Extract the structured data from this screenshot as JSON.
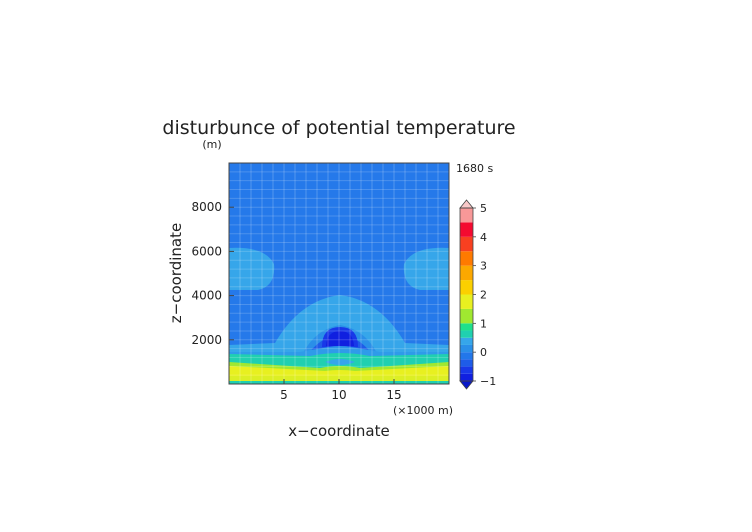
{
  "chart_data": {
    "type": "heatmap",
    "title": "disturbunce of potential temperature",
    "xlabel": "x−coordinate",
    "ylabel": "z−coordinate",
    "x_unit": "(×1000 m)",
    "y_unit": "(m)",
    "time_label": "1680 s",
    "xlim": [
      0,
      20
    ],
    "ylim": [
      0,
      10000
    ],
    "x_ticks": [
      "5",
      "10",
      "15"
    ],
    "y_ticks": [
      "2000",
      "4000",
      "6000",
      "8000"
    ],
    "grid": true,
    "colorbar": {
      "ticks": [
        "−1",
        "0",
        "1",
        "2",
        "3",
        "4",
        "5"
      ],
      "min": -1,
      "max": 5,
      "levels": [
        {
          "from": -1.0,
          "to": -0.75,
          "color": "#1020e0"
        },
        {
          "from": -0.75,
          "to": -0.5,
          "color": "#1838e8"
        },
        {
          "from": -0.5,
          "to": -0.25,
          "color": "#1e5ce8"
        },
        {
          "from": -0.25,
          "to": 0.0,
          "color": "#2277ea"
        },
        {
          "from": 0.0,
          "to": 0.25,
          "color": "#2a8fe8"
        },
        {
          "from": 0.25,
          "to": 0.5,
          "color": "#36a6ea"
        },
        {
          "from": 0.5,
          "to": 0.75,
          "color": "#20d0b0"
        },
        {
          "from": 0.75,
          "to": 1.0,
          "color": "#1fe08c"
        },
        {
          "from": 1.0,
          "to": 1.5,
          "color": "#a0e830"
        },
        {
          "from": 1.5,
          "to": 2.0,
          "color": "#e8f020"
        },
        {
          "from": 2.0,
          "to": 2.5,
          "color": "#fbd000"
        },
        {
          "from": 2.5,
          "to": 3.0,
          "color": "#fca800"
        },
        {
          "from": 3.0,
          "to": 3.5,
          "color": "#ff7a00"
        },
        {
          "from": 3.5,
          "to": 4.0,
          "color": "#f84020"
        },
        {
          "from": 4.0,
          "to": 4.5,
          "color": "#f40a30"
        },
        {
          "from": 4.5,
          "to": 5.0,
          "color": "#f89898"
        }
      ],
      "under_color": "#0818c8",
      "over_color": "#f8c8c8"
    },
    "field": {
      "background_value": -0.1,
      "regions": [
        {
          "name": "upper-left-pool",
          "value": 0.1,
          "x_range": [
            0,
            2
          ],
          "z_range": [
            4300,
            6200
          ]
        },
        {
          "name": "upper-right-pool",
          "value": 0.1,
          "x_range": [
            18,
            20
          ],
          "z_range": [
            4300,
            6200
          ]
        },
        {
          "name": "central-dome",
          "value": 0.1,
          "x_range": [
            5.5,
            14.5
          ],
          "z_range": [
            1800,
            4000
          ]
        },
        {
          "name": "lower-band",
          "value": 0.1,
          "x_range": [
            0,
            20
          ],
          "z_range": [
            1400,
            1800
          ]
        },
        {
          "name": "dome-ring",
          "value": -0.35,
          "x_range": [
            6.5,
            13.5
          ],
          "z_range": [
            1100,
            2100
          ]
        },
        {
          "name": "cold-core-outer",
          "value": -0.6,
          "x_range": [
            8,
            12
          ],
          "z_range": [
            1700,
            2600
          ]
        },
        {
          "name": "cold-core-inner",
          "value": -0.85,
          "x_range": [
            8.5,
            11.5
          ],
          "z_range": [
            1900,
            2500
          ]
        },
        {
          "name": "teal-layer",
          "value": 0.6,
          "x_range": [
            0,
            20
          ],
          "z_range": [
            900,
            1400
          ]
        },
        {
          "name": "green-layer",
          "value": 0.9,
          "x_range": [
            0,
            20
          ],
          "z_range": [
            700,
            900
          ]
        },
        {
          "name": "yellow-layer",
          "value": 1.3,
          "x_range": [
            0,
            20
          ],
          "z_range": [
            150,
            700
          ]
        },
        {
          "name": "surface-teal",
          "value": 0.6,
          "x_range": [
            0,
            20
          ],
          "z_range": [
            0,
            150
          ]
        }
      ]
    }
  }
}
